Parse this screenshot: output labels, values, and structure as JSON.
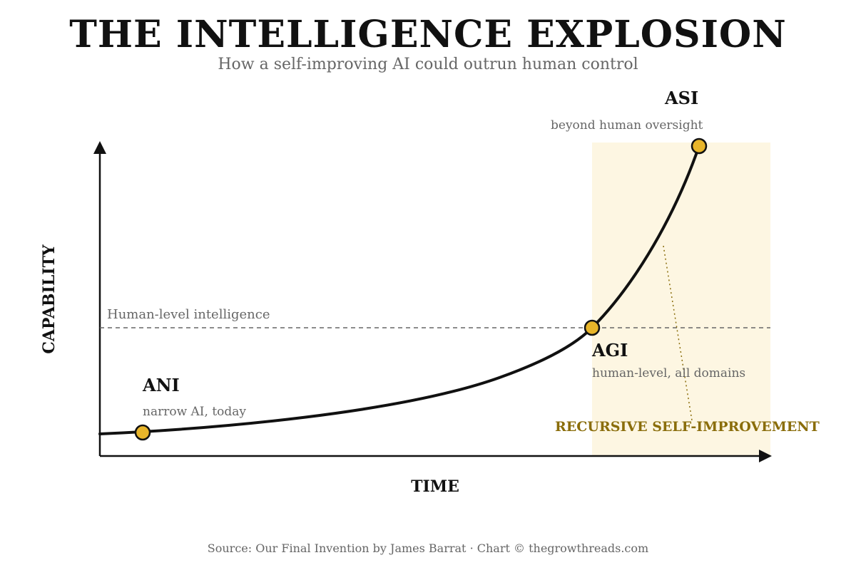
{
  "header": {
    "title": "THE INTELLIGENCE EXPLOSION",
    "subtitle": "How a self-improving AI could outrun human control"
  },
  "axes": {
    "y_label": "CAPABILITY",
    "x_label": "TIME"
  },
  "threshold": {
    "label": "Human-level intelligence"
  },
  "stages": {
    "ani": {
      "name": "ANI",
      "desc": "narrow AI, today"
    },
    "agi": {
      "name": "AGI",
      "desc": "human-level, all domains"
    },
    "asi": {
      "name": "ASI",
      "desc": "beyond human oversight"
    }
  },
  "phase": {
    "label": "RECURSIVE SELF-IMPROVEMENT"
  },
  "colors": {
    "curve": "#111111",
    "node_fill": "#e8b52a",
    "phase_bg": "#fdf6e2",
    "phase_text": "#8a6d0b",
    "dashed_line": "#666666",
    "muted_text": "#666666"
  },
  "footer": {
    "source": "Source: Our Final Invention by James Barrat · Chart © thegrowthreads.com"
  }
}
